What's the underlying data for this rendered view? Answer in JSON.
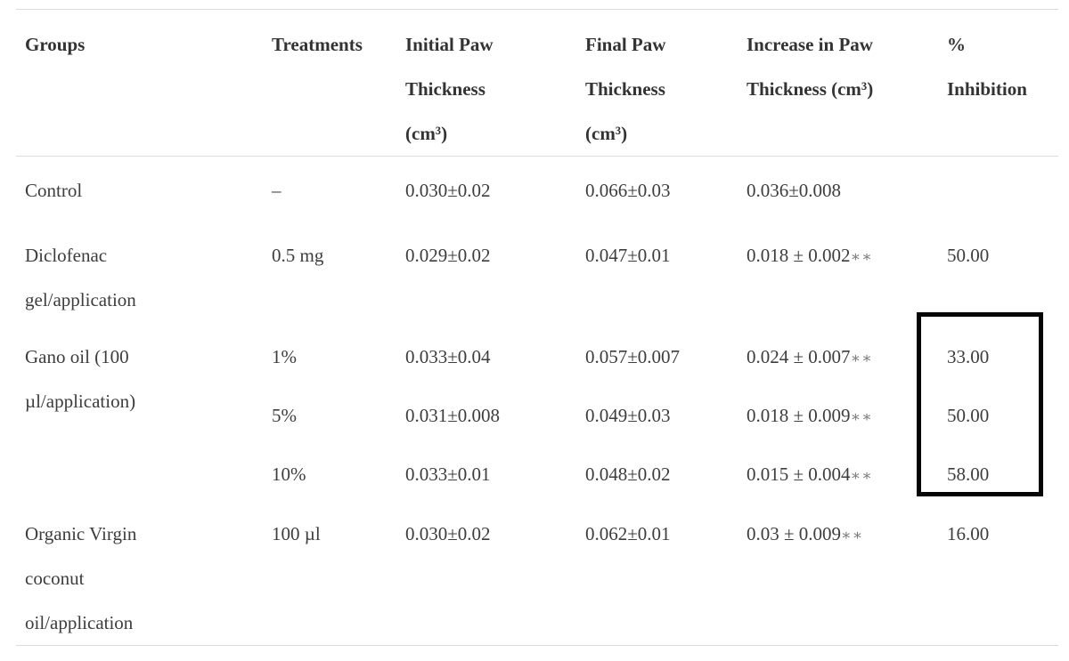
{
  "table": {
    "columns": [
      {
        "label": "Groups"
      },
      {
        "label": "Treatments"
      },
      {
        "label": "Initial Paw\nThickness\n(cm³)"
      },
      {
        "label": "Final Paw\nThickness\n(cm³)"
      },
      {
        "label": "Increase in Paw\nThickness (cm³)"
      },
      {
        "label": "%\nInhibition"
      }
    ],
    "rows": [
      {
        "group": "Control",
        "treatment": "–",
        "initial": "0.030±0.02",
        "final": "0.066±0.03",
        "increase": "0.036±0.008",
        "increase_note": "",
        "inhibition": ""
      },
      {
        "group": "Diclofenac\ngel/application",
        "treatment": "0.5 mg",
        "initial": "0.029±0.02",
        "final": "0.047±0.01",
        "increase": "0.018 ± 0.002",
        "increase_note": "∗∗",
        "inhibition": "50.00"
      },
      {
        "group": "Gano oil (100\nµl/application)",
        "treatment": "1%",
        "initial": "0.033±0.04",
        "final": "0.057±0.007",
        "increase": "0.024 ± 0.007",
        "increase_note": "∗∗",
        "inhibition": "33.00"
      },
      {
        "group": "",
        "treatment": "5%",
        "initial": "0.031±0.008",
        "final": "0.049±0.03",
        "increase": "0.018 ± 0.009",
        "increase_note": "∗∗",
        "inhibition": "50.00"
      },
      {
        "group": "",
        "treatment": "10%",
        "initial": "0.033±0.01",
        "final": "0.048±0.02",
        "increase": "0.015 ± 0.004",
        "increase_note": "∗∗",
        "inhibition": "58.00"
      },
      {
        "group": "Organic Virgin\ncoconut\noil/application",
        "treatment": "100 µl",
        "initial": "0.030±0.02",
        "final": "0.062±0.01",
        "increase": "0.03 ± 0.009",
        "increase_note": "∗∗",
        "inhibition": "16.00"
      }
    ]
  },
  "annotation": {
    "type": "highlight-rectangle",
    "border_color": "#000000",
    "highlighted_column": "% Inhibition",
    "highlighted_values": [
      "33.00",
      "50.00",
      "58.00"
    ]
  }
}
